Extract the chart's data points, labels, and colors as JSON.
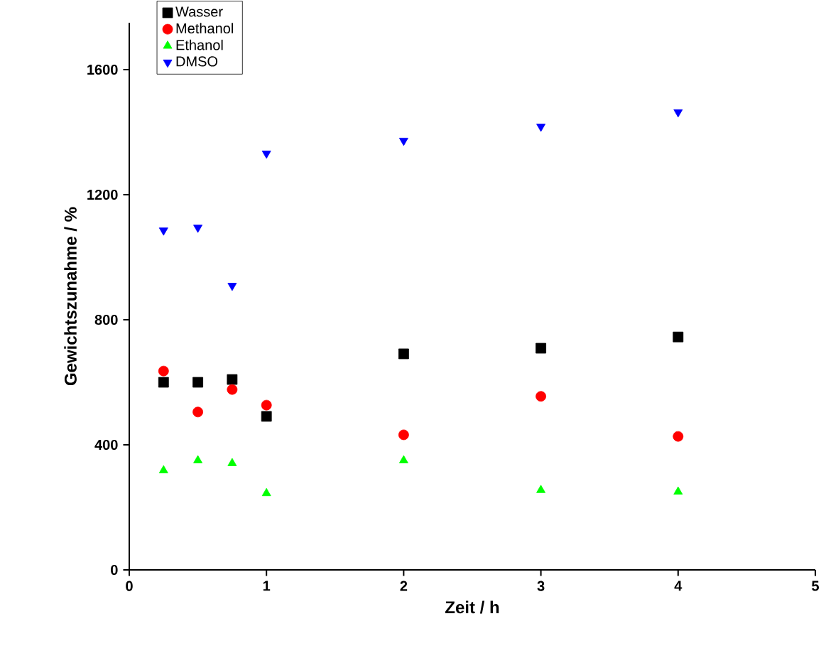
{
  "chart_data": {
    "type": "scatter",
    "xlabel": "Zeit / h",
    "ylabel": "Gewichtszunahme / %",
    "xlim": [
      0,
      5
    ],
    "ylim": [
      0,
      1750
    ],
    "xticks": [
      0,
      1,
      2,
      3,
      4,
      5
    ],
    "yticks": [
      0,
      400,
      800,
      1200,
      1600
    ],
    "legend": "top left",
    "grid": false,
    "x": [
      0.25,
      0.5,
      0.75,
      1,
      2,
      3,
      4
    ],
    "series": [
      {
        "name": "Wasser",
        "color": "#000000",
        "marker": "square",
        "values": [
          600,
          600,
          609,
          491,
          691,
          709,
          745
        ]
      },
      {
        "name": "Methanol",
        "color": "#ff0000",
        "marker": "circle",
        "values": [
          636,
          505,
          577,
          527,
          432,
          555,
          427
        ]
      },
      {
        "name": "Ethanol",
        "color": "#00ff00",
        "marker": "triangle",
        "values": [
          318,
          350,
          341,
          245,
          350,
          255,
          250
        ]
      },
      {
        "name": "DMSO",
        "color": "#0000ff",
        "marker": "triangle-down",
        "values": [
          1086,
          1095,
          909,
          1332,
          1373,
          1418,
          1464
        ]
      }
    ]
  }
}
